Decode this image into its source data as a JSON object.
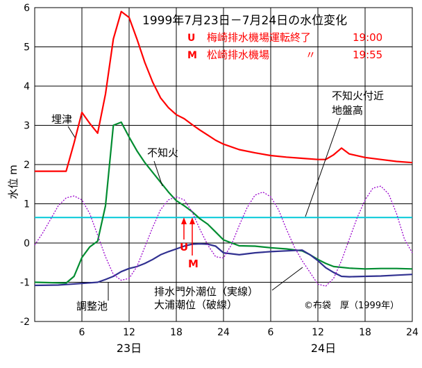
{
  "chart_data": {
    "type": "line",
    "title": "1999年7月23日－7月24日の水位変化",
    "notes": [
      {
        "label": "U",
        "text": "梅崎排水機場運転終了",
        "time": "19:00",
        "color": "#ff0000"
      },
      {
        "label": "M",
        "text": "松崎排水機場",
        "ditto": "〃",
        "time": "19:55",
        "color": "#ff0000"
      }
    ],
    "ylabel": "水位 m",
    "ylim": [
      -2,
      6
    ],
    "xlim": [
      0,
      48
    ],
    "yticks": [
      "-2",
      "-1",
      "0",
      "1",
      "2",
      "3",
      "4",
      "5",
      "6"
    ],
    "xticks": [
      "6",
      "12",
      "18",
      "24",
      "6",
      "12",
      "18",
      "24"
    ],
    "day_labels": [
      "23日",
      "24日"
    ],
    "grid": true,
    "legend": "none",
    "ground_level": 0.65,
    "series": [
      {
        "name": "埋津",
        "color": "#ff0000",
        "style": "solid",
        "points": [
          [
            0,
            1.83
          ],
          [
            4,
            1.83
          ],
          [
            5,
            2.55
          ],
          [
            6,
            3.33
          ],
          [
            7,
            3.05
          ],
          [
            8,
            2.8
          ],
          [
            9,
            3.8
          ],
          [
            10,
            5.2
          ],
          [
            11,
            5.9
          ],
          [
            12,
            5.75
          ],
          [
            13,
            5.2
          ],
          [
            14,
            4.6
          ],
          [
            15,
            4.1
          ],
          [
            16,
            3.7
          ],
          [
            17,
            3.45
          ],
          [
            18,
            3.27
          ],
          [
            19,
            3.17
          ],
          [
            20,
            3.02
          ],
          [
            21,
            2.88
          ],
          [
            22,
            2.75
          ],
          [
            23,
            2.62
          ],
          [
            24,
            2.52
          ],
          [
            26,
            2.38
          ],
          [
            28,
            2.3
          ],
          [
            30,
            2.23
          ],
          [
            32,
            2.19
          ],
          [
            34,
            2.16
          ],
          [
            36,
            2.13
          ],
          [
            37,
            2.13
          ],
          [
            38,
            2.25
          ],
          [
            39,
            2.42
          ],
          [
            40,
            2.27
          ],
          [
            42,
            2.18
          ],
          [
            44,
            2.13
          ],
          [
            46,
            2.08
          ],
          [
            48,
            2.05
          ]
        ]
      },
      {
        "name": "不知火",
        "color": "#008c30",
        "style": "solid",
        "points": [
          [
            0,
            -1
          ],
          [
            4,
            -1.02
          ],
          [
            5,
            -0.85
          ],
          [
            6,
            -0.37
          ],
          [
            7,
            -0.1
          ],
          [
            8,
            0.05
          ],
          [
            9,
            0.95
          ],
          [
            10,
            3
          ],
          [
            11,
            3.08
          ],
          [
            12,
            2.7
          ],
          [
            13,
            2.35
          ],
          [
            14,
            2.05
          ],
          [
            15,
            1.8
          ],
          [
            16,
            1.55
          ],
          [
            17,
            1.3
          ],
          [
            18,
            1.08
          ],
          [
            19,
            0.95
          ],
          [
            20,
            0.8
          ],
          [
            21,
            0.62
          ],
          [
            22,
            0.48
          ],
          [
            23,
            0.28
          ],
          [
            24,
            0.08
          ],
          [
            26,
            -0.07
          ],
          [
            28,
            -0.08
          ],
          [
            30,
            -0.12
          ],
          [
            32,
            -0.15
          ],
          [
            34,
            -0.2
          ],
          [
            35,
            -0.3
          ],
          [
            36,
            -0.42
          ],
          [
            37,
            -0.52
          ],
          [
            38,
            -0.6
          ],
          [
            40,
            -0.64
          ],
          [
            42,
            -0.66
          ],
          [
            44,
            -0.65
          ],
          [
            46,
            -0.65
          ],
          [
            48,
            -0.66
          ]
        ]
      },
      {
        "name": "排水門外潮位（実線）",
        "color": "#303090",
        "style": "solid",
        "points": [
          [
            0,
            -1.08
          ],
          [
            3,
            -1.07
          ],
          [
            6,
            -1.03
          ],
          [
            8,
            -1
          ],
          [
            9,
            -0.93
          ],
          [
            10,
            -0.85
          ],
          [
            11,
            -0.73
          ],
          [
            12,
            -0.65
          ],
          [
            13,
            -0.6
          ],
          [
            14,
            -0.52
          ],
          [
            15,
            -0.42
          ],
          [
            16,
            -0.3
          ],
          [
            17,
            -0.22
          ],
          [
            18,
            -0.15
          ],
          [
            19,
            -0.08
          ],
          [
            20,
            -0.03
          ],
          [
            21,
            -0.02
          ],
          [
            22,
            -0.03
          ],
          [
            23,
            -0.08
          ],
          [
            24,
            -0.25
          ],
          [
            26,
            -0.3
          ],
          [
            28,
            -0.25
          ],
          [
            30,
            -0.22
          ],
          [
            32,
            -0.2
          ],
          [
            34,
            -0.18
          ],
          [
            35,
            -0.3
          ],
          [
            36,
            -0.45
          ],
          [
            37,
            -0.63
          ],
          [
            38,
            -0.75
          ],
          [
            39,
            -0.85
          ],
          [
            40,
            -0.86
          ],
          [
            42,
            -0.85
          ],
          [
            44,
            -0.84
          ],
          [
            46,
            -0.82
          ],
          [
            48,
            -0.8
          ]
        ]
      },
      {
        "name": "大浦潮位（破線）",
        "color": "#9900cc",
        "style": "dashed",
        "points": [
          [
            0,
            -0.05
          ],
          [
            1,
            0.25
          ],
          [
            2,
            0.6
          ],
          [
            3,
            0.95
          ],
          [
            4,
            1.15
          ],
          [
            5,
            1.2
          ],
          [
            6,
            1.1
          ],
          [
            7,
            0.75
          ],
          [
            8,
            0.2
          ],
          [
            9,
            -0.35
          ],
          [
            10,
            -0.8
          ],
          [
            11,
            -0.95
          ],
          [
            12,
            -0.9
          ],
          [
            13,
            -0.6
          ],
          [
            14,
            -0.1
          ],
          [
            15,
            0.4
          ],
          [
            16,
            0.85
          ],
          [
            17,
            1.1
          ],
          [
            18,
            1.18
          ],
          [
            19,
            1.1
          ],
          [
            20,
            0.8
          ],
          [
            21,
            0.35
          ],
          [
            22,
            -0.05
          ],
          [
            23,
            -0.35
          ],
          [
            24,
            -0.38
          ],
          [
            25,
            -0.05
          ],
          [
            26,
            0.45
          ],
          [
            27,
            0.9
          ],
          [
            28,
            1.22
          ],
          [
            29,
            1.3
          ],
          [
            30,
            1.18
          ],
          [
            31,
            0.85
          ],
          [
            32,
            0.35
          ],
          [
            33,
            -0.1
          ],
          [
            34,
            -0.45
          ],
          [
            35,
            -0.75
          ],
          [
            36,
            -1.05
          ],
          [
            37,
            -1.1
          ],
          [
            38,
            -0.9
          ],
          [
            39,
            -0.45
          ],
          [
            40,
            0.1
          ],
          [
            41,
            0.65
          ],
          [
            42,
            1.1
          ],
          [
            43,
            1.4
          ],
          [
            44,
            1.45
          ],
          [
            45,
            1.25
          ],
          [
            46,
            0.75
          ],
          [
            47,
            0.1
          ],
          [
            48,
            -0.25
          ]
        ]
      }
    ],
    "annotations": [
      {
        "text": "埋津",
        "color": "#000000"
      },
      {
        "text": "不知火",
        "color": "#000000"
      },
      {
        "text": "不知火付近",
        "color": "#000000"
      },
      {
        "text": "地盤高",
        "color": "#000000"
      },
      {
        "text": "排水門外潮位（実線）",
        "color": "#000000"
      },
      {
        "text": "大浦潮位（破線）",
        "color": "#000000"
      },
      {
        "text": "調整池",
        "color": "#000000"
      },
      {
        "text": "©布袋　厚（1999年）",
        "color": "#000000"
      }
    ],
    "arrow_labels": [
      {
        "text": "U",
        "color": "#ff0000",
        "x": 19.0
      },
      {
        "text": "M",
        "color": "#ff0000",
        "x": 19.92
      }
    ]
  }
}
